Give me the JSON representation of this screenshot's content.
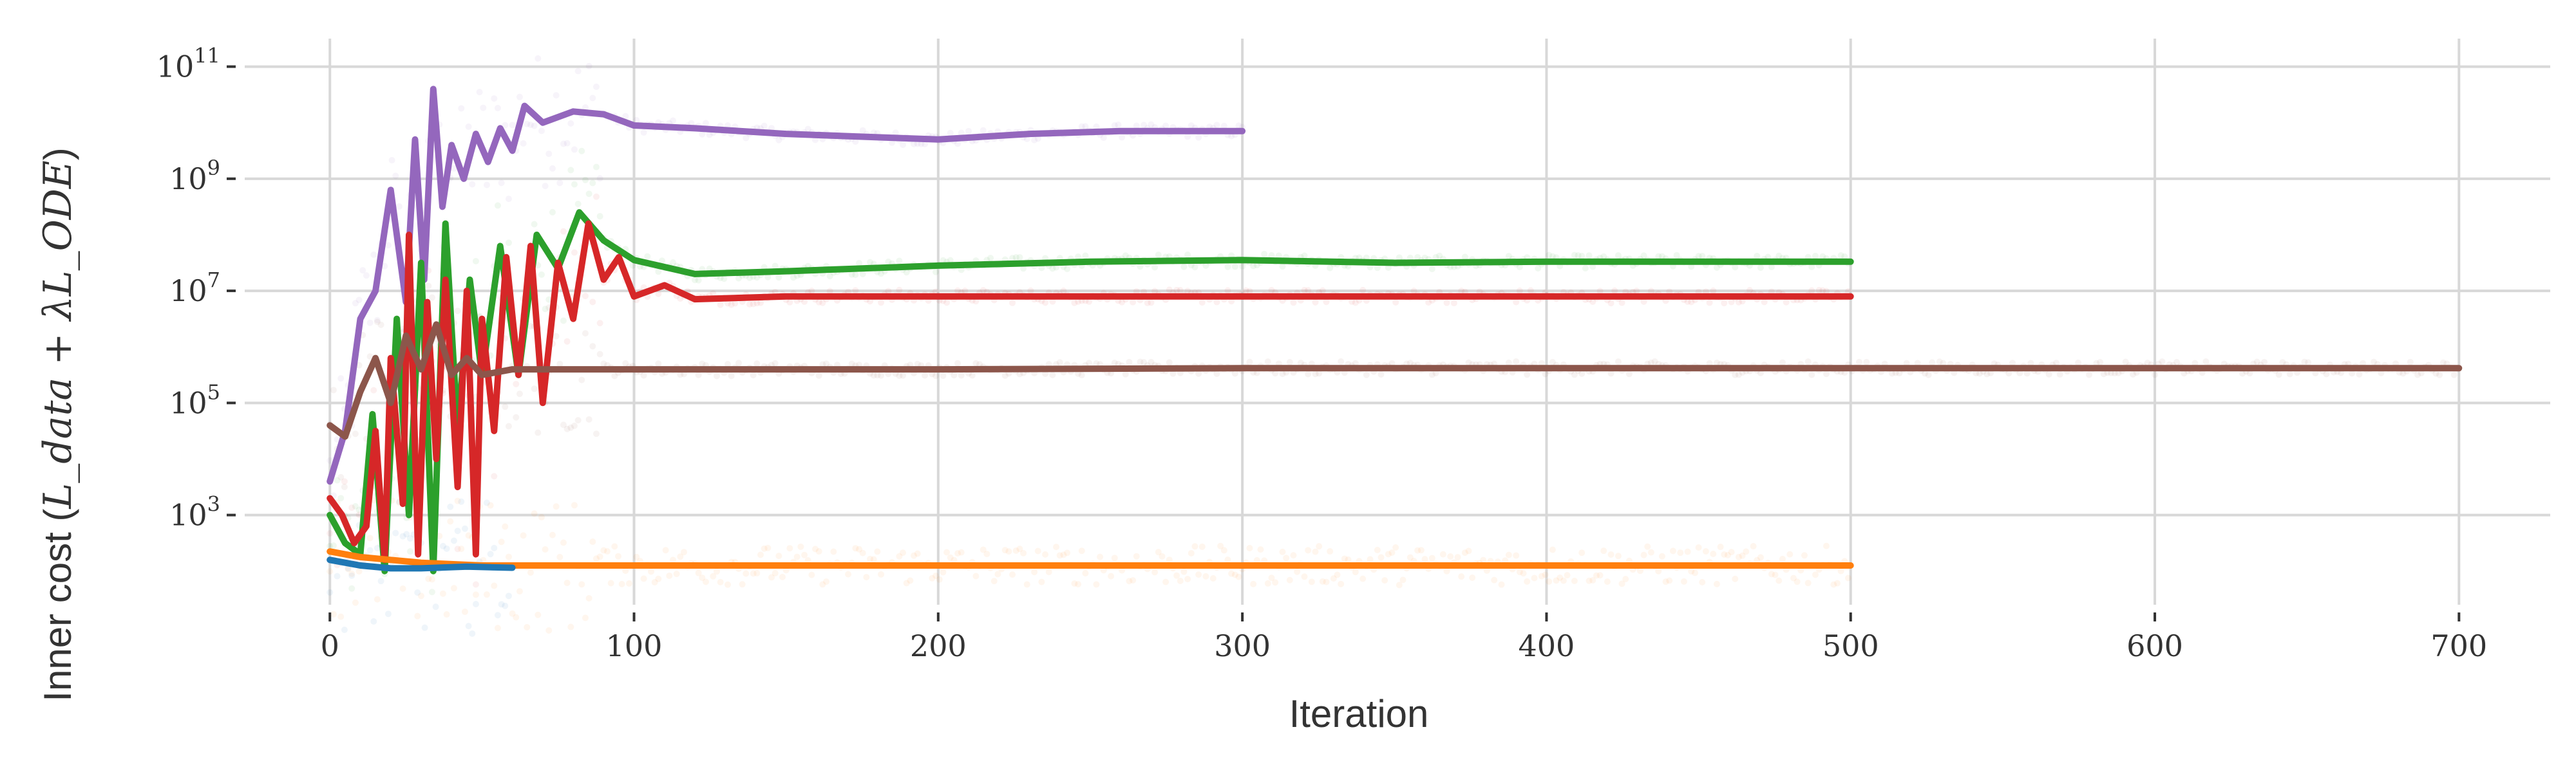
{
  "chart_data": {
    "type": "line",
    "title": "",
    "xlabel": "Iteration",
    "ylabel_prefix": "Inner cost (",
    "ylabel_math": "L_data + λL_ODE",
    "ylabel_suffix": ")",
    "x_ticks": [
      0,
      100,
      200,
      300,
      400,
      500,
      600,
      700
    ],
    "y_ticks": [
      {
        "value": 1000,
        "base": "10",
        "exp": "3"
      },
      {
        "value": 100000,
        "base": "10",
        "exp": "5"
      },
      {
        "value": 10000000,
        "base": "10",
        "exp": "7"
      },
      {
        "value": 1000000000,
        "base": "10",
        "exp": "9"
      },
      {
        "value": 100000000000,
        "base": "10",
        "exp": "11"
      }
    ],
    "xlim": [
      -28,
      730
    ],
    "ylim_log10": [
      1.4,
      11.5
    ],
    "yscale": "log",
    "grid": true,
    "legend": "none",
    "series": [
      {
        "color": "#9467bd",
        "length": 300,
        "points": [
          [
            0,
            3.6
          ],
          [
            5,
            4.5
          ],
          [
            10,
            6.5
          ],
          [
            15,
            7.0
          ],
          [
            20,
            8.8
          ],
          [
            25,
            6.8
          ],
          [
            28,
            9.7
          ],
          [
            31,
            7.2
          ],
          [
            34,
            10.6
          ],
          [
            37,
            8.5
          ],
          [
            40,
            9.6
          ],
          [
            44,
            9.0
          ],
          [
            48,
            9.8
          ],
          [
            52,
            9.3
          ],
          [
            56,
            9.9
          ],
          [
            60,
            9.5
          ],
          [
            64,
            10.3
          ],
          [
            70,
            10.0
          ],
          [
            80,
            10.2
          ],
          [
            90,
            10.15
          ],
          [
            100,
            9.95
          ],
          [
            120,
            9.9
          ],
          [
            150,
            9.8
          ],
          [
            175,
            9.75
          ],
          [
            200,
            9.7
          ],
          [
            230,
            9.8
          ],
          [
            260,
            9.85
          ],
          [
            300,
            9.85
          ]
        ]
      },
      {
        "color": "#2ca02c",
        "length": 500,
        "points": [
          [
            0,
            3.0
          ],
          [
            5,
            2.5
          ],
          [
            10,
            2.3
          ],
          [
            14,
            4.8
          ],
          [
            18,
            2.0
          ],
          [
            22,
            6.5
          ],
          [
            26,
            3.0
          ],
          [
            30,
            7.5
          ],
          [
            34,
            2.0
          ],
          [
            38,
            8.2
          ],
          [
            42,
            4.5
          ],
          [
            46,
            7.2
          ],
          [
            50,
            5.5
          ],
          [
            56,
            7.8
          ],
          [
            62,
            5.5
          ],
          [
            68,
            8.0
          ],
          [
            75,
            7.4
          ],
          [
            82,
            8.4
          ],
          [
            90,
            7.9
          ],
          [
            100,
            7.55
          ],
          [
            120,
            7.3
          ],
          [
            150,
            7.35
          ],
          [
            200,
            7.45
          ],
          [
            250,
            7.52
          ],
          [
            300,
            7.55
          ],
          [
            350,
            7.5
          ],
          [
            400,
            7.52
          ],
          [
            450,
            7.52
          ],
          [
            500,
            7.52
          ]
        ]
      },
      {
        "color": "#d62728",
        "length": 500,
        "points": [
          [
            0,
            3.3
          ],
          [
            4,
            3.0
          ],
          [
            8,
            2.5
          ],
          [
            12,
            2.8
          ],
          [
            15,
            4.5
          ],
          [
            18,
            2.2
          ],
          [
            20,
            5.8
          ],
          [
            24,
            3.2
          ],
          [
            26,
            8.0
          ],
          [
            29,
            2.3
          ],
          [
            32,
            6.8
          ],
          [
            35,
            4.0
          ],
          [
            38,
            7.2
          ],
          [
            42,
            3.5
          ],
          [
            45,
            7.0
          ],
          [
            48,
            2.3
          ],
          [
            50,
            6.5
          ],
          [
            54,
            4.5
          ],
          [
            58,
            7.6
          ],
          [
            62,
            5.5
          ],
          [
            66,
            7.8
          ],
          [
            70,
            5.0
          ],
          [
            75,
            7.5
          ],
          [
            80,
            6.5
          ],
          [
            85,
            8.2
          ],
          [
            90,
            7.2
          ],
          [
            95,
            7.6
          ],
          [
            100,
            6.9
          ],
          [
            110,
            7.1
          ],
          [
            120,
            6.85
          ],
          [
            150,
            6.9
          ],
          [
            200,
            6.9
          ],
          [
            300,
            6.9
          ],
          [
            400,
            6.9
          ],
          [
            500,
            6.9
          ]
        ]
      },
      {
        "color": "#8c564b",
        "length": 700,
        "points": [
          [
            0,
            4.6
          ],
          [
            5,
            4.4
          ],
          [
            10,
            5.2
          ],
          [
            15,
            5.8
          ],
          [
            20,
            5.0
          ],
          [
            25,
            6.2
          ],
          [
            30,
            5.6
          ],
          [
            35,
            6.4
          ],
          [
            40,
            5.5
          ],
          [
            45,
            5.8
          ],
          [
            50,
            5.5
          ],
          [
            60,
            5.6
          ],
          [
            80,
            5.6
          ],
          [
            130,
            5.6
          ],
          [
            200,
            5.6
          ],
          [
            300,
            5.62
          ],
          [
            400,
            5.62
          ],
          [
            500,
            5.62
          ],
          [
            600,
            5.62
          ],
          [
            700,
            5.62
          ]
        ]
      },
      {
        "color": "#ff7f0e",
        "length": 500,
        "points": [
          [
            0,
            2.35
          ],
          [
            10,
            2.25
          ],
          [
            20,
            2.2
          ],
          [
            30,
            2.15
          ],
          [
            50,
            2.1
          ],
          [
            100,
            2.1
          ],
          [
            200,
            2.1
          ],
          [
            300,
            2.1
          ],
          [
            400,
            2.1
          ],
          [
            500,
            2.1
          ]
        ]
      },
      {
        "color": "#1f77b4",
        "length": 60,
        "points": [
          [
            0,
            2.2
          ],
          [
            10,
            2.1
          ],
          [
            20,
            2.05
          ],
          [
            30,
            2.05
          ],
          [
            45,
            2.08
          ],
          [
            60,
            2.06
          ]
        ]
      }
    ]
  }
}
